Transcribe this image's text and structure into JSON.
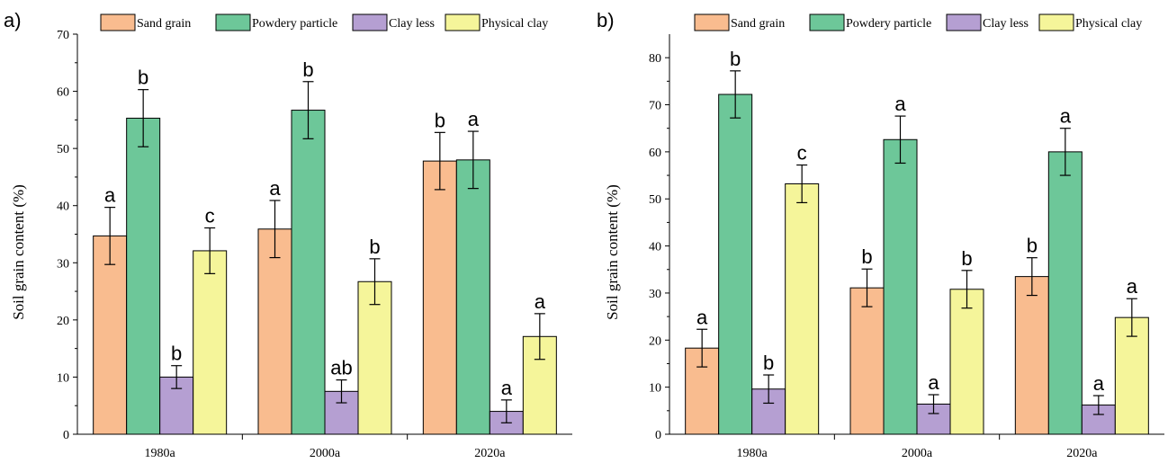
{
  "chart_data": [
    {
      "type": "bar",
      "panel_label": "a)",
      "ylabel": "Soil grain content (%)",
      "xlabel": "",
      "ylim": [
        0,
        70
      ],
      "yticks": [
        0,
        10,
        20,
        30,
        40,
        50,
        60,
        70
      ],
      "categories": [
        "1980a",
        "2000a",
        "2020a"
      ],
      "legend_position": "top",
      "series": [
        {
          "name": "Sand grain",
          "color": "#F9BC8F",
          "values": [
            34.7,
            35.9,
            47.8
          ],
          "errors": [
            5.0,
            5.0,
            5.0
          ],
          "labels": [
            "a",
            "a",
            "b"
          ]
        },
        {
          "name": "Powdery particle",
          "color": "#6DC799",
          "values": [
            55.3,
            56.7,
            48.0
          ],
          "errors": [
            5.0,
            5.0,
            5.0
          ],
          "labels": [
            "b",
            "b",
            "a"
          ]
        },
        {
          "name": "Clay less",
          "color": "#B59FD2",
          "values": [
            10.0,
            7.5,
            4.0
          ],
          "errors": [
            2.0,
            2.0,
            2.0
          ],
          "labels": [
            "b",
            "ab",
            "a"
          ]
        },
        {
          "name": "Physical clay",
          "color": "#F5F59A",
          "values": [
            32.1,
            26.7,
            17.1
          ],
          "errors": [
            4.0,
            4.0,
            4.0
          ],
          "labels": [
            "c",
            "b",
            "a"
          ]
        }
      ]
    },
    {
      "type": "bar",
      "panel_label": "b)",
      "ylabel": "Soil grain content (%)",
      "xlabel": "",
      "ylim": [
        0,
        85
      ],
      "yticks": [
        0,
        10,
        20,
        30,
        40,
        50,
        60,
        70,
        80
      ],
      "categories": [
        "1980a",
        "2000a",
        "2020a"
      ],
      "legend_position": "top",
      "series": [
        {
          "name": "Sand grain",
          "color": "#F9BC8F",
          "values": [
            18.3,
            31.1,
            33.5
          ],
          "errors": [
            4.0,
            4.0,
            4.0
          ],
          "labels": [
            "a",
            "b",
            "b"
          ]
        },
        {
          "name": "Powdery particle",
          "color": "#6DC799",
          "values": [
            72.2,
            62.6,
            60.0
          ],
          "errors": [
            5.0,
            5.0,
            5.0
          ],
          "labels": [
            "b",
            "a",
            "a"
          ]
        },
        {
          "name": "Clay less",
          "color": "#B59FD2",
          "values": [
            9.6,
            6.4,
            6.2
          ],
          "errors": [
            3.0,
            2.0,
            2.0
          ],
          "labels": [
            "b",
            "a",
            "a"
          ]
        },
        {
          "name": "Physical clay",
          "color": "#F5F59A",
          "values": [
            53.2,
            30.8,
            24.8
          ],
          "errors": [
            4.0,
            4.0,
            4.0
          ],
          "labels": [
            "c",
            "b",
            "a"
          ]
        }
      ]
    }
  ]
}
